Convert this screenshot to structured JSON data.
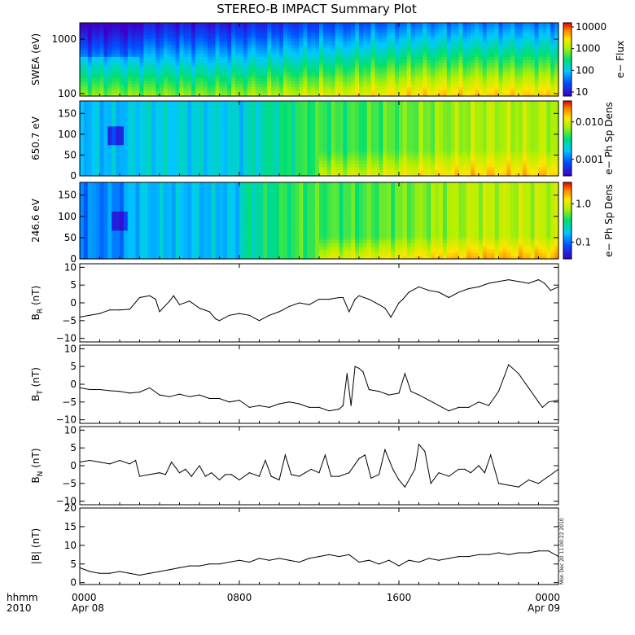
{
  "title": "STEREO-B IMPACT Summary Plot",
  "time_axis": {
    "corner_label_line1": "hhmm",
    "corner_label_line2": "2010",
    "ticks": [
      {
        "hours": 0,
        "label": "0000",
        "sublabel": "Apr 08"
      },
      {
        "hours": 8,
        "label": "0800",
        "sublabel": ""
      },
      {
        "hours": 16,
        "label": "1600",
        "sublabel": ""
      },
      {
        "hours": 24,
        "label": "0000",
        "sublabel": "Apr 09"
      }
    ],
    "range_hours": [
      0,
      24
    ]
  },
  "timestamp": "Mon Dec 20 11:00:22 2010",
  "chart_data": [
    {
      "type": "heatmap",
      "id": "swea",
      "ylabel": "SWEA (eV)",
      "yscale": "log",
      "ylim": [
        90,
        2000
      ],
      "yticks": [
        {
          "v": 100,
          "label": "100"
        },
        {
          "v": 1000,
          "label": "1000"
        }
      ],
      "colorbar": {
        "label": "e− Flux",
        "scale": "log",
        "ticks": [
          {
            "label": "10"
          },
          {
            "label": "100"
          },
          {
            "label": "1000"
          },
          {
            "label": "10000"
          }
        ]
      }
    },
    {
      "type": "heatmap",
      "id": "pad650",
      "ylabel": "650.7 eV",
      "yscale": "linear",
      "ylim": [
        0,
        180
      ],
      "yticks": [
        {
          "v": 0,
          "label": "0"
        },
        {
          "v": 50,
          "label": "50"
        },
        {
          "v": 100,
          "label": "100"
        },
        {
          "v": 150,
          "label": "150"
        }
      ],
      "colorbar": {
        "label": "e− Ph Sp Dens",
        "scale": "log",
        "ticks": [
          {
            "label": "0.001"
          },
          {
            "label": "0.010"
          }
        ]
      }
    },
    {
      "type": "heatmap",
      "id": "pad246",
      "ylabel": "246.6 eV",
      "yscale": "linear",
      "ylim": [
        0,
        180
      ],
      "yticks": [
        {
          "v": 0,
          "label": "0"
        },
        {
          "v": 50,
          "label": "50"
        },
        {
          "v": 100,
          "label": "100"
        },
        {
          "v": 150,
          "label": "150"
        }
      ],
      "colorbar": {
        "label": "e− Ph Sp Dens",
        "scale": "log",
        "ticks": [
          {
            "label": "0.1"
          },
          {
            "label": "1.0"
          }
        ]
      }
    },
    {
      "type": "line",
      "id": "br",
      "ylabel": "B",
      "ylabel_sub": "R",
      "ylabel_unit": " (nT)",
      "ylim": [
        -11,
        11
      ],
      "yticks": [
        {
          "v": -10,
          "label": "−10"
        },
        {
          "v": -5,
          "label": "−5"
        },
        {
          "v": 0,
          "label": "0"
        },
        {
          "v": 5,
          "label": "5"
        },
        {
          "v": 10,
          "label": "10"
        }
      ],
      "x": [
        0,
        0.5,
        1,
        1.5,
        2,
        2.5,
        3,
        3.5,
        3.8,
        4,
        4.5,
        4.7,
        5,
        5.5,
        6,
        6.5,
        6.8,
        7,
        7.5,
        8,
        8.5,
        9,
        9.5,
        10,
        10.5,
        11,
        11.5,
        12,
        12.5,
        13,
        13.2,
        13.5,
        13.8,
        14,
        14.5,
        15,
        15.3,
        15.6,
        16,
        16.2,
        16.5,
        17,
        17.5,
        18,
        18.5,
        19,
        19.5,
        20,
        20.5,
        21,
        21.5,
        22,
        22.5,
        23,
        23.3,
        23.6,
        24
      ],
      "values": [
        -4,
        -3.5,
        -3,
        -2,
        -2,
        -1.8,
        1.5,
        2,
        1,
        -2.5,
        0.5,
        2,
        -0.5,
        0.5,
        -1.5,
        -2.5,
        -4.5,
        -5,
        -3.5,
        -3,
        -3.5,
        -5,
        -3.5,
        -2.5,
        -1,
        0,
        -0.5,
        1,
        1,
        1.5,
        1.5,
        -2.5,
        1,
        2,
        1,
        -0.5,
        -1.5,
        -4,
        0,
        1,
        3,
        4.5,
        3.5,
        3,
        1.5,
        3,
        4,
        4.5,
        5.5,
        6,
        6.5,
        6,
        5.5,
        6.5,
        5.5,
        3.5,
        4.5
      ]
    },
    {
      "type": "line",
      "id": "bt",
      "ylabel": "B",
      "ylabel_sub": "T",
      "ylabel_unit": " (nT)",
      "ylim": [
        -11,
        11
      ],
      "yticks": [
        {
          "v": -10,
          "label": "−10"
        },
        {
          "v": -5,
          "label": "−5"
        },
        {
          "v": 0,
          "label": "0"
        },
        {
          "v": 5,
          "label": "5"
        },
        {
          "v": 10,
          "label": "10"
        }
      ],
      "x": [
        0,
        0.5,
        1,
        1.5,
        2,
        2.5,
        3,
        3.5,
        4,
        4.5,
        5,
        5.5,
        6,
        6.5,
        7,
        7.5,
        8,
        8.5,
        9,
        9.5,
        10,
        10.5,
        11,
        11.5,
        12,
        12.5,
        13,
        13.2,
        13.4,
        13.6,
        13.8,
        14,
        14.2,
        14.5,
        15,
        15.5,
        16,
        16.3,
        16.6,
        17,
        17.5,
        18,
        18.5,
        19,
        19.5,
        20,
        20.5,
        21,
        21.5,
        22,
        22.5,
        23,
        23.2,
        23.5,
        24
      ],
      "values": [
        -1,
        -1.5,
        -1.5,
        -1.8,
        -2,
        -2.5,
        -2.2,
        -1,
        -3,
        -3.5,
        -2.8,
        -3.5,
        -3,
        -4,
        -4,
        -5,
        -4.5,
        -6.5,
        -6,
        -6.5,
        -5.5,
        -5,
        -5.5,
        -6.5,
        -6.5,
        -7.5,
        -7,
        -6,
        3,
        -6,
        5,
        4.5,
        3.5,
        -1.5,
        -2,
        -3,
        -2.5,
        3,
        -2,
        -3,
        -4.5,
        -6,
        -7.5,
        -6.5,
        -6.5,
        -5,
        -6,
        -2,
        5.5,
        3,
        -1,
        -5,
        -6.5,
        -5,
        -4.5
      ]
    },
    {
      "type": "line",
      "id": "bn",
      "ylabel": "B",
      "ylabel_sub": "N",
      "ylabel_unit": " (nT)",
      "ylim": [
        -11,
        11
      ],
      "yticks": [
        {
          "v": -10,
          "label": "−10"
        },
        {
          "v": -5,
          "label": "−5"
        },
        {
          "v": 0,
          "label": "0"
        },
        {
          "v": 5,
          "label": "5"
        },
        {
          "v": 10,
          "label": "10"
        }
      ],
      "x": [
        0,
        0.5,
        1,
        1.5,
        2,
        2.5,
        2.8,
        3,
        3.5,
        4,
        4.3,
        4.6,
        5,
        5.3,
        5.6,
        6,
        6.3,
        6.6,
        7,
        7.3,
        7.6,
        8,
        8.5,
        9,
        9.3,
        9.6,
        10,
        10.3,
        10.6,
        11,
        11.3,
        11.6,
        12,
        12.3,
        12.6,
        13,
        13.5,
        14,
        14.3,
        14.6,
        15,
        15.3,
        15.7,
        16,
        16.3,
        16.8,
        17,
        17.3,
        17.6,
        18,
        18.5,
        19,
        19.3,
        19.6,
        20,
        20.3,
        20.6,
        21,
        21.5,
        22,
        22.5,
        23,
        23.5,
        24
      ],
      "values": [
        1,
        1.5,
        1,
        0.5,
        1.5,
        0.5,
        1.5,
        -3,
        -2.5,
        -2,
        -2.5,
        1,
        -2,
        -1,
        -3,
        0,
        -3,
        -2,
        -4,
        -2.5,
        -2.5,
        -4,
        -2,
        -3,
        1.5,
        -3,
        -4,
        3,
        -2.5,
        -3,
        -2,
        -1,
        -2,
        3,
        -3,
        -3,
        -2,
        2,
        3,
        -3.5,
        -2.5,
        4.5,
        -1,
        -4,
        -6,
        -1,
        6,
        4,
        -5,
        -2,
        -3,
        -1,
        -1,
        -2,
        0,
        -2,
        3,
        -5,
        -5.5,
        -6,
        -4,
        -5,
        -3,
        -1
      ]
    },
    {
      "type": "line",
      "id": "bmag",
      "ylabel": "|B| (nT)",
      "ylim": [
        -0.5,
        20
      ],
      "yticks": [
        {
          "v": 0,
          "label": "0"
        },
        {
          "v": 5,
          "label": "5"
        },
        {
          "v": 10,
          "label": "10"
        },
        {
          "v": 15,
          "label": "15"
        },
        {
          "v": 20,
          "label": "20"
        }
      ],
      "x": [
        0,
        0.5,
        1,
        1.5,
        2,
        2.5,
        3,
        3.5,
        4,
        4.5,
        5,
        5.5,
        6,
        6.5,
        7,
        7.5,
        8,
        8.5,
        9,
        9.5,
        10,
        10.5,
        11,
        11.5,
        12,
        12.5,
        13,
        13.5,
        14,
        14.5,
        15,
        15.5,
        16,
        16.5,
        17,
        17.5,
        18,
        18.5,
        19,
        19.5,
        20,
        20.5,
        21,
        21.5,
        22,
        22.5,
        23,
        23.5,
        24
      ],
      "values": [
        4,
        3,
        2.5,
        2.5,
        3,
        2.5,
        2,
        2.5,
        3,
        3.5,
        4,
        4.5,
        4.5,
        5,
        5,
        5.5,
        6,
        5.5,
        6.5,
        6,
        6.5,
        6,
        5.5,
        6.5,
        7,
        7.5,
        7,
        7.5,
        5.5,
        6,
        5,
        6,
        4.5,
        6,
        5.5,
        6.5,
        6,
        6.5,
        7,
        7,
        7.5,
        7.5,
        8,
        7.5,
        8,
        8,
        8.5,
        8.5,
        7
      ]
    }
  ]
}
